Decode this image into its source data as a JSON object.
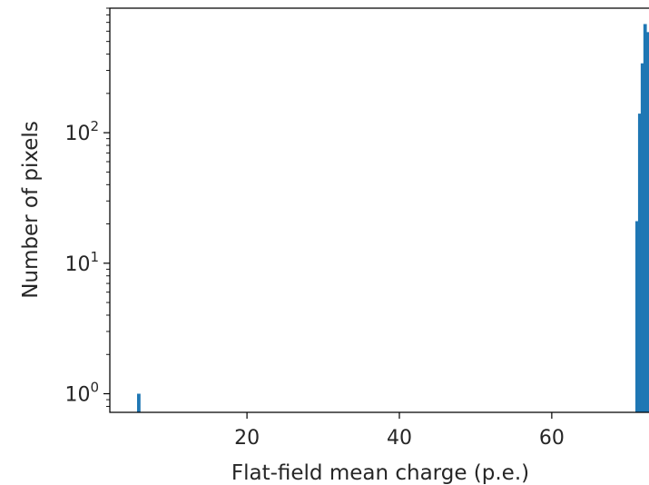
{
  "chart_data": {
    "type": "bar",
    "xlabel": "Flat-field mean charge (p.e.)",
    "ylabel": "Number of pixels",
    "yscale": "log",
    "xlim": [
      2,
      73
    ],
    "ylim": [
      0.72,
      900
    ],
    "grid": false,
    "bar_color": "#1f77b4",
    "bin_width": 0.45,
    "x_ticks": [
      "20",
      "40",
      "60"
    ],
    "y_ticks": [
      {
        "base": "10",
        "exp": "0"
      },
      {
        "base": "10",
        "exp": "1"
      },
      {
        "base": "10",
        "exp": "2"
      }
    ],
    "bins": [
      {
        "x": 5.8,
        "count": 1
      },
      {
        "x": 71.2,
        "count": 21
      },
      {
        "x": 71.55,
        "count": 140
      },
      {
        "x": 71.9,
        "count": 340
      },
      {
        "x": 72.25,
        "count": 680
      },
      {
        "x": 72.6,
        "count": 590
      },
      {
        "x": 72.95,
        "count": 125
      }
    ]
  }
}
